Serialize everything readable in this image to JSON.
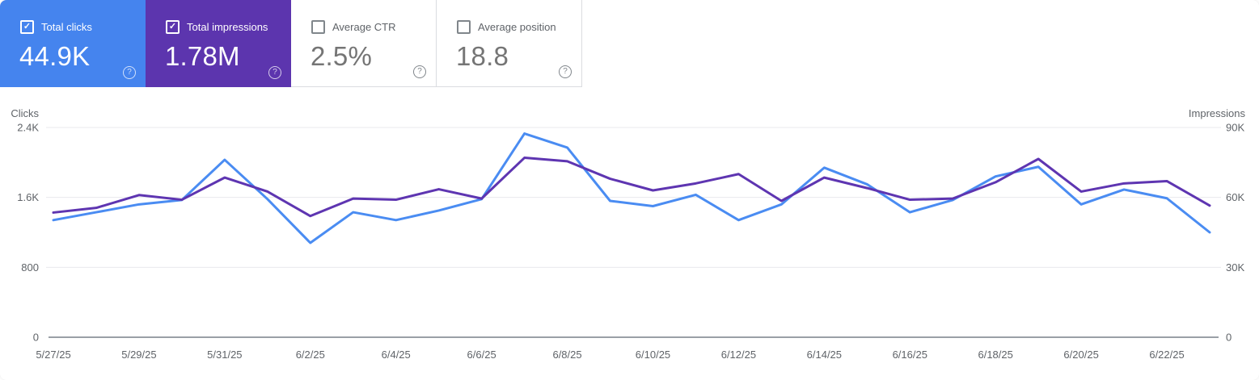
{
  "cards": [
    {
      "id": "total-clicks",
      "label": "Total clicks",
      "value": "44.9K",
      "checked": true,
      "bg": "#4584ee"
    },
    {
      "id": "total-impressions",
      "label": "Total impressions",
      "value": "1.78M",
      "checked": true,
      "bg": "#5c35ae"
    },
    {
      "id": "average-ctr",
      "label": "Average CTR",
      "value": "2.5%",
      "checked": false,
      "bg": "#ffffff"
    },
    {
      "id": "average-position",
      "label": "Average position",
      "value": "18.8",
      "checked": false,
      "bg": "#ffffff"
    }
  ],
  "icons": {
    "checkbox_check": "✓",
    "help_glyph": "?"
  },
  "colors": {
    "clicks_accent": "#4a8cf2",
    "impressions_accent": "#5e35b1",
    "gridline": "#e8eaed",
    "axis_line": "#9aa0a6",
    "tick_text": "#5f6368"
  },
  "chart_data": {
    "type": "line",
    "x": [
      "5/27/25",
      "5/28/25",
      "5/29/25",
      "5/30/25",
      "5/31/25",
      "6/1/25",
      "6/2/25",
      "6/3/25",
      "6/4/25",
      "6/5/25",
      "6/6/25",
      "6/7/25",
      "6/8/25",
      "6/9/25",
      "6/10/25",
      "6/11/25",
      "6/12/25",
      "6/13/25",
      "6/14/25",
      "6/15/25",
      "6/16/25",
      "6/17/25",
      "6/18/25",
      "6/19/25",
      "6/20/25",
      "6/21/25",
      "6/22/25",
      "6/23/25"
    ],
    "x_tick_every": 2,
    "grid": true,
    "legend_position": "none",
    "series": [
      {
        "name": "Clicks",
        "axis": "left",
        "color": "#4a8cf2",
        "values": [
          1340,
          1430,
          1520,
          1570,
          2030,
          1580,
          1080,
          1430,
          1340,
          1450,
          1580,
          2330,
          2170,
          1560,
          1500,
          1630,
          1340,
          1520,
          1940,
          1750,
          1430,
          1570,
          1840,
          1950,
          1520,
          1690,
          1590,
          1200
        ]
      },
      {
        "name": "Impressions",
        "axis": "right",
        "color": "#5e35b1",
        "values": [
          53500,
          55500,
          61000,
          59000,
          68500,
          62500,
          52000,
          59500,
          59000,
          63500,
          59500,
          77000,
          75500,
          68000,
          63000,
          66000,
          70000,
          58500,
          68500,
          64000,
          59000,
          59500,
          66500,
          76500,
          62500,
          66000,
          67000,
          56500
        ]
      }
    ],
    "left_axis": {
      "title": "Clicks",
      "max": 2400,
      "ticks": [
        {
          "value": 0,
          "label": "0"
        },
        {
          "value": 800,
          "label": "800"
        },
        {
          "value": 1600,
          "label": "1.6K"
        },
        {
          "value": 2400,
          "label": "2.4K"
        }
      ]
    },
    "right_axis": {
      "title": "Impressions",
      "max": 90000,
      "ticks": [
        {
          "value": 0,
          "label": "0"
        },
        {
          "value": 30000,
          "label": "30K"
        },
        {
          "value": 60000,
          "label": "60K"
        },
        {
          "value": 90000,
          "label": "90K"
        }
      ]
    }
  }
}
